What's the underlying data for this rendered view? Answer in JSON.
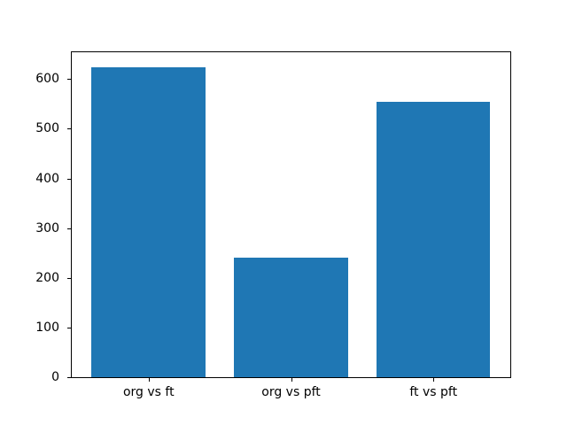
{
  "chart_data": {
    "type": "bar",
    "categories": [
      "org vs ft",
      "org vs pft",
      "ft vs pft"
    ],
    "values": [
      623,
      241,
      554
    ],
    "title": "",
    "xlabel": "",
    "ylabel": "",
    "ylim": [
      0,
      654
    ],
    "yticks": [
      0,
      100,
      200,
      300,
      400,
      500,
      600
    ],
    "bar_color": "#1f77b4",
    "bar_width_fraction": 0.2597,
    "bar_center_fractions": [
      0.1753,
      0.5,
      0.8247
    ],
    "grid": false,
    "legend_position": "none",
    "spine_color": "#000000",
    "background_color": "#ffffff"
  }
}
